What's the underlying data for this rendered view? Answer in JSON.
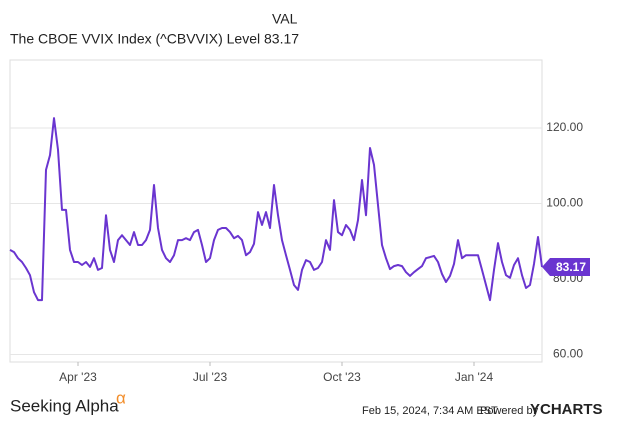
{
  "chart_data": {
    "type": "line",
    "legend_header": "VAL",
    "categories": [
      null,
      null,
      null,
      null,
      null,
      null,
      null,
      null,
      null,
      null,
      null,
      null,
      null,
      null,
      null,
      null,
      null,
      "Apr '23",
      null,
      null,
      null,
      null,
      null,
      null,
      null,
      null,
      null,
      null,
      null,
      null,
      null,
      null,
      null,
      null,
      null,
      null,
      null,
      null,
      null,
      null,
      null,
      null,
      null,
      null,
      null,
      null,
      null,
      null,
      null,
      null,
      "Jul '23",
      null,
      null,
      null,
      null,
      null,
      null,
      null,
      null,
      null,
      null,
      null,
      null,
      null,
      null,
      null,
      null,
      null,
      null,
      null,
      null,
      null,
      null,
      null,
      null,
      null,
      null,
      null,
      null,
      null,
      null,
      null,
      null,
      "Oct '23",
      null,
      null,
      null,
      null,
      null,
      null,
      null,
      null,
      null,
      null,
      null,
      null,
      null,
      null,
      null,
      null,
      null,
      null,
      null,
      null,
      null,
      null,
      null,
      null,
      null,
      null,
      null,
      null,
      null,
      null,
      null,
      null,
      "Jan '24",
      null,
      null,
      null,
      null,
      null,
      null,
      null,
      null,
      null,
      null,
      null,
      null,
      null,
      null,
      null,
      null,
      null
    ],
    "series": [
      {
        "name": "The CBOE VVIX Index (^CBVVIX) Level",
        "color": "#6a35d0",
        "values": [
          87.7,
          87.1,
          85.5,
          84.5,
          82.9,
          81.0,
          76.5,
          74.4,
          74.4,
          108.9,
          112.8,
          122.6,
          114.2,
          98.3,
          98.3,
          87.7,
          84.5,
          84.5,
          83.7,
          84.5,
          83.2,
          85.5,
          82.4,
          82.9,
          96.9,
          87.7,
          84.5,
          90.3,
          91.6,
          90.3,
          89.0,
          92.4,
          89.0,
          89.0,
          90.3,
          93.0,
          104.9,
          93.5,
          87.7,
          85.5,
          84.5,
          86.3,
          90.3,
          90.3,
          90.8,
          90.3,
          92.4,
          93.0,
          89.0,
          84.5,
          85.5,
          90.3,
          93.0,
          93.5,
          93.5,
          92.4,
          90.8,
          91.4,
          90.3,
          86.3,
          87.1,
          89.3,
          97.7,
          94.3,
          97.7,
          93.5,
          104.9,
          96.9,
          90.3,
          86.3,
          82.4,
          78.4,
          77.1,
          82.4,
          85.0,
          84.5,
          82.4,
          82.9,
          84.5,
          90.3,
          87.7,
          100.9,
          92.4,
          91.6,
          94.3,
          93.0,
          90.3,
          95.6,
          106.2,
          96.9,
          114.7,
          110.2,
          99.6,
          89.0,
          85.5,
          82.6,
          83.4,
          83.7,
          83.4,
          81.8,
          80.8,
          81.8,
          82.6,
          83.4,
          85.5,
          85.8,
          86.1,
          84.5,
          81.3,
          79.2,
          80.8,
          84.0,
          90.3,
          85.5,
          86.3,
          86.3,
          86.3,
          86.3,
          82.4,
          78.4,
          74.4,
          82.4,
          89.5,
          84.5,
          81.0,
          80.3,
          83.7,
          85.5,
          81.0,
          77.6,
          78.4,
          84.0,
          91.1,
          83.17
        ]
      }
    ],
    "ylim": [
      58,
      138
    ],
    "yticks": [
      {
        "value": 60,
        "label": "60.00"
      },
      {
        "value": 80,
        "label": "80.00"
      },
      {
        "value": 100,
        "label": "100.00"
      },
      {
        "value": 120,
        "label": "120.00"
      }
    ],
    "grid": true,
    "footer": {
      "source": "Seeking Alpha",
      "source_mark": "α",
      "timestamp": "Feb 15, 2024, 7:34 AM EST",
      "powered_by": "Powered by",
      "brand": "YCHARTS"
    }
  }
}
